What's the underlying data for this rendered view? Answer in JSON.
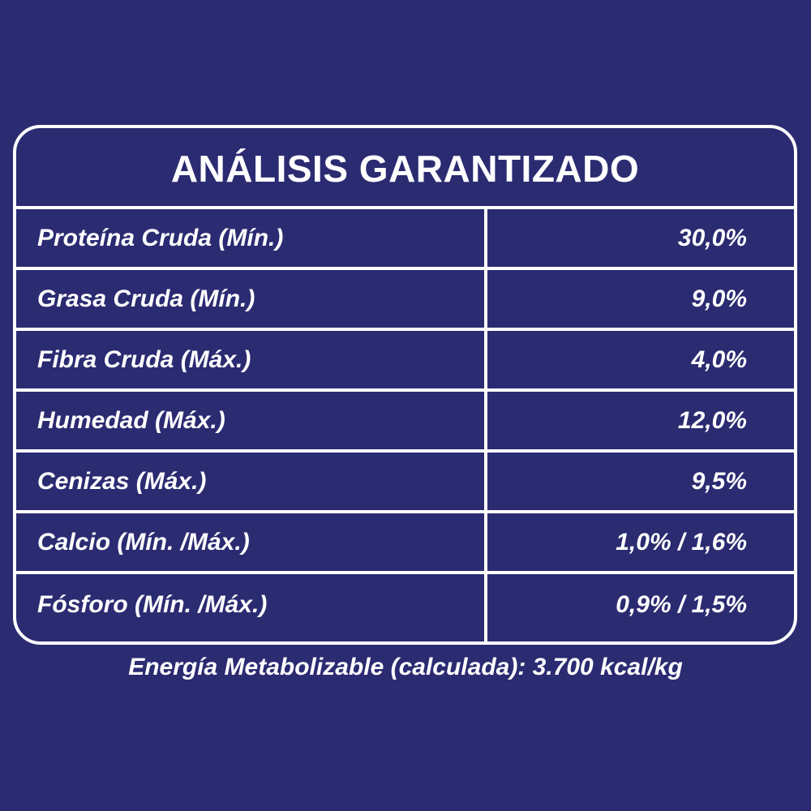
{
  "title": "ANÁLISIS GARANTIZADO",
  "rows": [
    {
      "label": "Proteína Cruda (Mín.)",
      "value": "30,0%"
    },
    {
      "label": "Grasa Cruda (Mín.)",
      "value": "9,0%"
    },
    {
      "label": "Fibra Cruda (Máx.)",
      "value": "4,0%"
    },
    {
      "label": "Humedad (Máx.)",
      "value": "12,0%"
    },
    {
      "label": "Cenizas (Máx.)",
      "value": "9,5%"
    },
    {
      "label": "Calcio (Mín. /Máx.)",
      "value": "1,0% / 1,6%"
    },
    {
      "label": "Fósforo (Mín. /Máx.)",
      "value": "0,9% / 1,5%"
    }
  ],
  "footer": "Energía Metabolizable (calculada): 3.700 kcal/kg",
  "colors": {
    "background": "#2b2b72",
    "foreground": "#ffffff"
  }
}
